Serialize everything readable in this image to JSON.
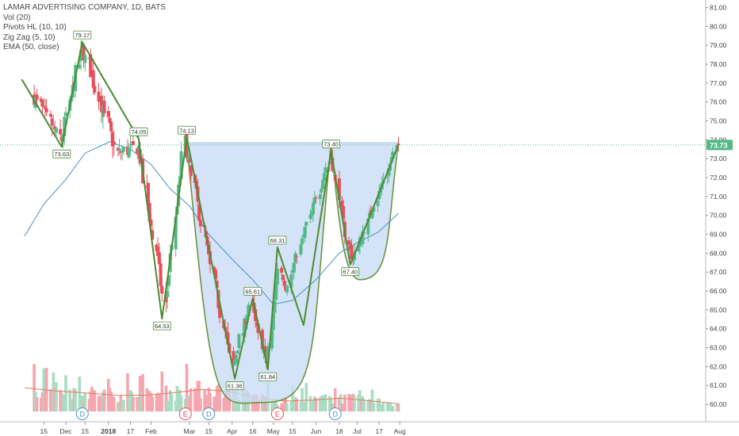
{
  "legend": {
    "title": "LAMAR ADVERTISING COMPANY, 1D, BATS",
    "indicators": [
      "Vol (20)",
      "Pivots HL (10, 10)",
      "Zig Zag (5, 10)",
      "EMA (50, close)"
    ]
  },
  "colors": {
    "up": "#53b987",
    "down": "#eb4d5c",
    "vol_up": "#a9dcc3",
    "vol_down": "#f5a6ae",
    "ema": "#4a90c2",
    "vol_ma": "#e07b5f",
    "zigzag": "#4c8b32",
    "pattern_fill": "#c9dcf6",
    "price_line": "#53b987"
  },
  "chart_data": {
    "type": "candlestick",
    "symbol": "LAMAR ADVERTISING COMPANY, 1D, BATS",
    "ylim": [
      59.5,
      81.4
    ],
    "y_ticks": [
      "60.00",
      "61.00",
      "62.00",
      "63.00",
      "64.00",
      "65.00",
      "66.00",
      "67.00",
      "68.00",
      "69.00",
      "70.00",
      "71.00",
      "72.00",
      "73.00",
      "74.00",
      "75.00",
      "76.00",
      "77.00",
      "78.00",
      "79.00",
      "80.00",
      "81.00"
    ],
    "x_ticks": [
      "15",
      "Dec",
      "15",
      "2018",
      "17",
      "Feb",
      "Mar",
      "15",
      "Apr",
      "16",
      "May",
      "15",
      "Jun",
      "18",
      "Jul",
      "17",
      "Aug"
    ],
    "last_price": "73.73",
    "candle_series": [
      {
        "segment": "2017-11-08 to 2017-11-28",
        "start": 76.4,
        "end": 74.0,
        "volatility": 0.8
      },
      {
        "segment": "2017-11-28 to 2017-12-13",
        "start": 74.0,
        "end": 78.9,
        "volatility": 0.8
      },
      {
        "segment": "2017-12-13 to 2018-01-08",
        "start": 78.9,
        "end": 73.3,
        "volatility": 0.9
      },
      {
        "segment": "2018-01-08 to 2018-01-23",
        "start": 73.3,
        "end": 73.6,
        "volatility": 0.8
      },
      {
        "segment": "2018-01-23 to 2018-02-12",
        "start": 73.6,
        "end": 65.2,
        "volatility": 0.9
      },
      {
        "segment": "2018-02-12 to 2018-02-26",
        "start": 65.2,
        "end": 73.9,
        "volatility": 0.9
      },
      {
        "segment": "2018-02-26 to 2018-04-02",
        "start": 73.9,
        "end": 62.0,
        "volatility": 0.8
      },
      {
        "segment": "2018-04-02 to 2018-04-13",
        "start": 62.0,
        "end": 65.3,
        "volatility": 0.7
      },
      {
        "segment": "2018-04-13 to 2018-04-26",
        "start": 65.3,
        "end": 62.2,
        "volatility": 0.7
      },
      {
        "segment": "2018-04-26 to 2018-05-04",
        "start": 62.2,
        "end": 67.3,
        "volatility": 0.7
      },
      {
        "segment": "2018-05-04 to 2018-05-10",
        "start": 67.3,
        "end": 66.2,
        "volatility": 0.5
      },
      {
        "segment": "2018-05-10 to 2018-06-12",
        "start": 66.2,
        "end": 73.2,
        "volatility": 0.6
      },
      {
        "segment": "2018-06-12 to 2018-06-27",
        "start": 73.2,
        "end": 67.6,
        "volatility": 0.7
      },
      {
        "segment": "2018-06-27 to 2018-07-31",
        "start": 67.6,
        "end": 73.73,
        "volatility": 0.6
      }
    ],
    "ema_series": [
      {
        "date": "2017-11-01",
        "value": 68.9
      },
      {
        "date": "2017-11-15",
        "value": 70.6
      },
      {
        "date": "2017-12-01",
        "value": 71.9
      },
      {
        "date": "2017-12-15",
        "value": 73.3
      },
      {
        "date": "2018-01-02",
        "value": 73.9
      },
      {
        "date": "2018-01-17",
        "value": 73.5
      },
      {
        "date": "2018-02-01",
        "value": 72.7
      },
      {
        "date": "2018-02-15",
        "value": 71.4
      },
      {
        "date": "2018-03-01",
        "value": 70.5
      },
      {
        "date": "2018-03-15",
        "value": 69.0
      },
      {
        "date": "2018-04-02",
        "value": 67.6
      },
      {
        "date": "2018-04-16",
        "value": 66.6
      },
      {
        "date": "2018-05-01",
        "value": 65.3
      },
      {
        "date": "2018-05-15",
        "value": 65.5
      },
      {
        "date": "2018-06-01",
        "value": 66.6
      },
      {
        "date": "2018-06-18",
        "value": 68.0
      },
      {
        "date": "2018-07-02",
        "value": 68.6
      },
      {
        "date": "2018-07-16",
        "value": 69.1
      },
      {
        "date": "2018-07-31",
        "value": 70.1
      }
    ],
    "zigzag": [
      {
        "date": "2017-10-30",
        "value": 77.2
      },
      {
        "date": "2017-11-28",
        "value": 73.63
      },
      {
        "date": "2017-12-13",
        "value": 79.17
      },
      {
        "date": "2018-01-23",
        "value": 74.05
      },
      {
        "date": "2018-02-09",
        "value": 64.53
      },
      {
        "date": "2018-02-27",
        "value": 74.13
      },
      {
        "date": "2018-04-03",
        "value": 61.36
      },
      {
        "date": "2018-04-16",
        "value": 65.61
      },
      {
        "date": "2018-04-27",
        "value": 61.84
      },
      {
        "date": "2018-05-04",
        "value": 68.31
      },
      {
        "date": "2018-05-23",
        "value": 64.2
      },
      {
        "date": "2018-06-12",
        "value": 73.4
      },
      {
        "date": "2018-06-26",
        "value": 67.4
      },
      {
        "date": "2018-07-31",
        "value": 73.73
      }
    ],
    "pivot_labels": [
      {
        "date": "2017-12-13",
        "value": 79.17,
        "text": "79.17",
        "position": "above"
      },
      {
        "date": "2017-11-28",
        "value": 73.63,
        "text": "73.63",
        "position": "below"
      },
      {
        "date": "2018-01-23",
        "value": 74.05,
        "text": "74.05",
        "position": "above"
      },
      {
        "date": "2018-02-09",
        "value": 64.53,
        "text": "64.53",
        "position": "below"
      },
      {
        "date": "2018-02-27",
        "value": 74.13,
        "text": "74.13",
        "position": "above"
      },
      {
        "date": "2018-04-03",
        "value": 61.36,
        "text": "61.36",
        "position": "below"
      },
      {
        "date": "2018-04-16",
        "value": 65.61,
        "text": "65.61",
        "position": "above"
      },
      {
        "date": "2018-04-27",
        "value": 61.84,
        "text": "61.84",
        "position": "below"
      },
      {
        "date": "2018-05-04",
        "value": 68.31,
        "text": "68.31",
        "position": "above"
      },
      {
        "date": "2018-06-12",
        "value": 73.4,
        "text": "73.40",
        "position": "above"
      },
      {
        "date": "2018-06-26",
        "value": 67.4,
        "text": "67.40",
        "position": "below"
      }
    ],
    "cup_handle": {
      "rim_value": 73.85,
      "cup": {
        "start_date": "2018-02-27",
        "bottom_date": "2018-04-24",
        "bottom_value": 60.1,
        "end_date": "2018-06-12"
      },
      "handle": {
        "start_date": "2018-06-12",
        "bottom_date": "2018-07-03",
        "bottom_value": 66.6,
        "end_date": "2018-07-31"
      }
    },
    "volume_ma": [
      {
        "date": "2017-11-01",
        "value": 0.62
      },
      {
        "date": "2017-11-20",
        "value": 0.55
      },
      {
        "date": "2017-12-10",
        "value": 0.5
      },
      {
        "date": "2018-01-08",
        "value": 0.42
      },
      {
        "date": "2018-01-30",
        "value": 0.43
      },
      {
        "date": "2018-02-20",
        "value": 0.5
      },
      {
        "date": "2018-03-10",
        "value": 0.58
      },
      {
        "date": "2018-03-30",
        "value": 0.52
      },
      {
        "date": "2018-04-20",
        "value": 0.36
      },
      {
        "date": "2018-05-10",
        "value": 0.27
      },
      {
        "date": "2018-05-30",
        "value": 0.3
      },
      {
        "date": "2018-06-18",
        "value": 0.35
      },
      {
        "date": "2018-07-05",
        "value": 0.3
      },
      {
        "date": "2018-07-31",
        "value": 0.2
      }
    ],
    "event_markers": [
      {
        "date": "2017-12-13",
        "label": "D"
      },
      {
        "date": "2018-02-26",
        "label": "E"
      },
      {
        "date": "2018-03-15",
        "label": "D"
      },
      {
        "date": "2018-05-04",
        "label": "E"
      },
      {
        "date": "2018-06-15",
        "label": "D"
      }
    ]
  }
}
